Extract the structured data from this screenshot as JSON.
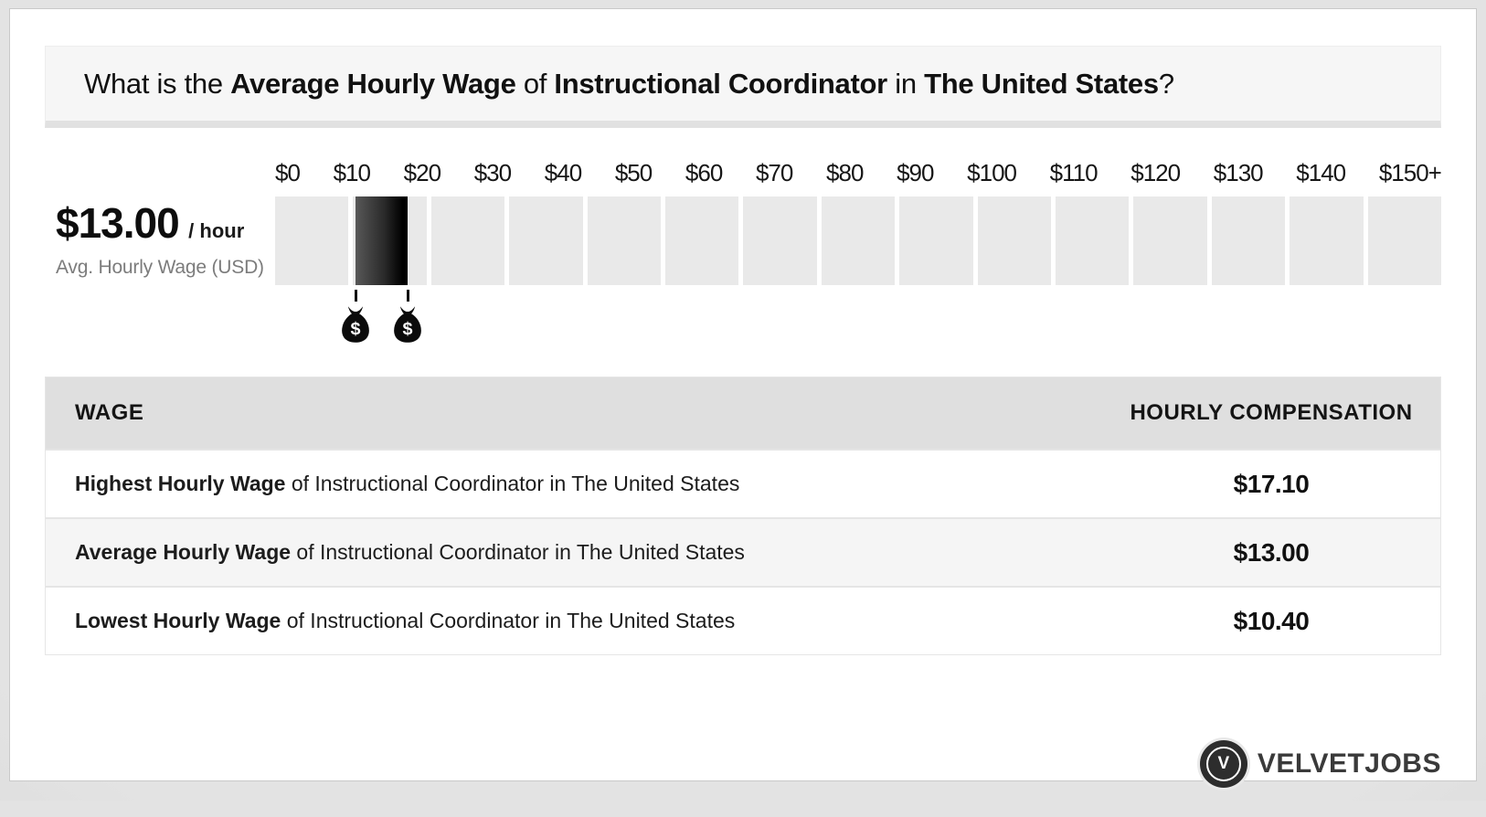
{
  "header": {
    "title_parts": [
      {
        "text": "What is the ",
        "bold": false
      },
      {
        "text": "Average Hourly Wage",
        "bold": true
      },
      {
        "text": " of ",
        "bold": false
      },
      {
        "text": "Instructional Coordinator",
        "bold": true
      },
      {
        "text": " in ",
        "bold": false
      },
      {
        "text": "The United States",
        "bold": true
      },
      {
        "text": "?",
        "bold": false
      }
    ]
  },
  "summary": {
    "amount": "$13.00",
    "per_label": "/ hour",
    "caption": "Avg. Hourly Wage (USD)"
  },
  "chart_data": {
    "type": "bar",
    "title": "What is the Average Hourly Wage of Instructional Coordinator in The United States?",
    "axis": {
      "min": 0,
      "max": 150,
      "tick_interval": 10,
      "segment_count": 15,
      "tick_labels": [
        "$0",
        "$10",
        "$20",
        "$30",
        "$40",
        "$50",
        "$60",
        "$70",
        "$80",
        "$90",
        "$100",
        "$110",
        "$120",
        "$130",
        "$140",
        "$150+"
      ]
    },
    "highlight_range": {
      "low": 10.4,
      "high": 17.1
    },
    "values": {
      "highest_hourly_wage": 17.1,
      "average_hourly_wage": 13.0,
      "lowest_hourly_wage": 10.4
    },
    "unit": "USD / hour",
    "money_bag_symbol": "$",
    "colors": {
      "track": "#e9e9e9",
      "bar_gradient_start": "#585858",
      "bar_gradient_end": "#000000"
    },
    "legend": "none",
    "grid": false
  },
  "table": {
    "columns": [
      "WAGE",
      "HOURLY COMPENSATION"
    ],
    "rows": [
      {
        "bold": "Highest Hourly Wage",
        "rest": " of Instructional Coordinator in The United States",
        "value": "$17.10"
      },
      {
        "bold": "Average Hourly Wage",
        "rest": " of Instructional Coordinator in The United States",
        "value": "$13.00"
      },
      {
        "bold": "Lowest Hourly Wage",
        "rest": " of Instructional Coordinator in The United States",
        "value": "$10.40"
      }
    ]
  },
  "footer": {
    "logo_letter": "V",
    "brand": "VELVETJOBS"
  }
}
